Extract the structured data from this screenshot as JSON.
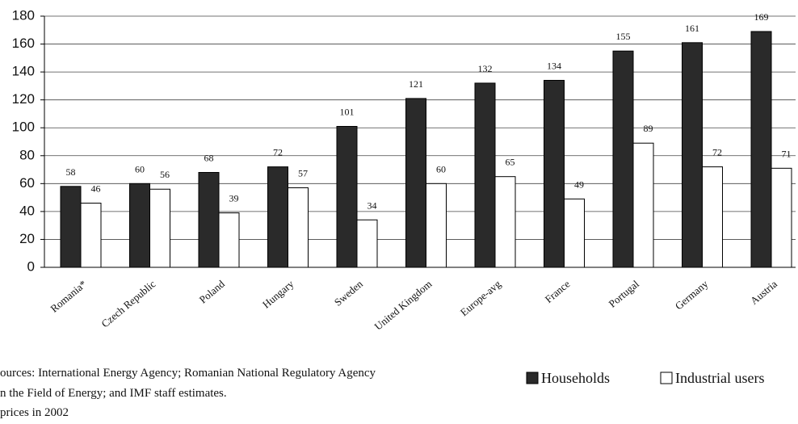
{
  "chart_data": {
    "type": "bar",
    "categories": [
      "Romania*",
      "Czech Republic",
      "Poland",
      "Hungary",
      "Sweden",
      "United Kingdom",
      "Europe-avg",
      "France",
      "Portugal",
      "Germany",
      "Austria"
    ],
    "series": [
      {
        "name": "Households",
        "color": "#2a2a2a",
        "values": [
          58,
          60,
          68,
          72,
          101,
          121,
          132,
          134,
          155,
          161,
          169
        ]
      },
      {
        "name": "Industrial users",
        "color": "#ffffff",
        "values": [
          46,
          56,
          39,
          57,
          34,
          60,
          65,
          49,
          89,
          72,
          71
        ]
      }
    ],
    "ylim": [
      0,
      180
    ],
    "yticks": [
      0,
      20,
      40,
      60,
      80,
      100,
      120,
      140,
      160,
      180
    ],
    "grid": true,
    "notes": [
      "ources: International Energy Agency; Romanian National Regulatory Agency",
      "n the Field of Energy; and IMF staff estimates.",
      "prices in 2002"
    ]
  }
}
